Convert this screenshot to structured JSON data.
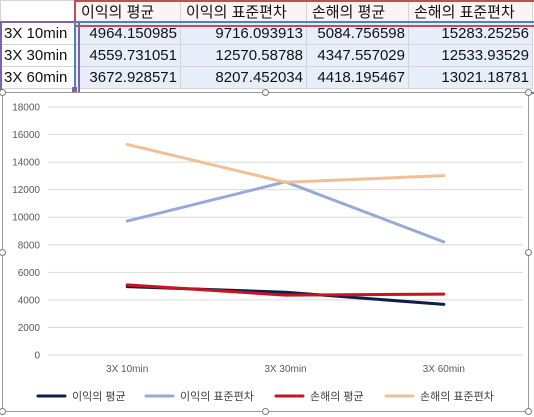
{
  "table": {
    "headers": [
      "",
      "이익의 평균",
      "이익의 표준편차",
      "손해의 평균",
      "손해의 표준편차"
    ],
    "rows": [
      {
        "label": "3X 10min",
        "values": [
          "4964.150985",
          "9716.093913",
          "5084.756598",
          "15283.25256"
        ]
      },
      {
        "label": "3X 30min",
        "values": [
          "4559.731051",
          "12570.58788",
          "4347.557029",
          "12533.93529"
        ]
      },
      {
        "label": "3X 60min",
        "values": [
          "3672.928571",
          "8207.452034",
          "4418.195467",
          "13021.18781"
        ]
      }
    ]
  },
  "chart_data": {
    "type": "line",
    "categories": [
      "3X 10min",
      "3X 30min",
      "3X 60min"
    ],
    "ylim": [
      0,
      18000
    ],
    "yticks": [
      0,
      2000,
      4000,
      6000,
      8000,
      10000,
      12000,
      14000,
      16000,
      18000
    ],
    "ytick_labels": [
      "0",
      "2000",
      "4000",
      "6000",
      "8000",
      "10000",
      "12000",
      "14000",
      "16000",
      "18000"
    ],
    "grid": true,
    "legend_position": "bottom",
    "series": [
      {
        "name": "이익의 평균",
        "color": "#0f1d4a",
        "values": [
          4964.150985,
          4559.731051,
          3672.928571
        ]
      },
      {
        "name": "이익의 표준편차",
        "color": "#95abd3",
        "values": [
          9716.093913,
          12570.58788,
          8207.452034
        ]
      },
      {
        "name": "손해의 평균",
        "color": "#c8141e",
        "values": [
          5084.756598,
          4347.557029,
          4418.195467
        ]
      },
      {
        "name": "손해의 표준편차",
        "color": "#f2bf94",
        "values": [
          15283.25256,
          12533.93529,
          13021.18781
        ]
      }
    ]
  }
}
